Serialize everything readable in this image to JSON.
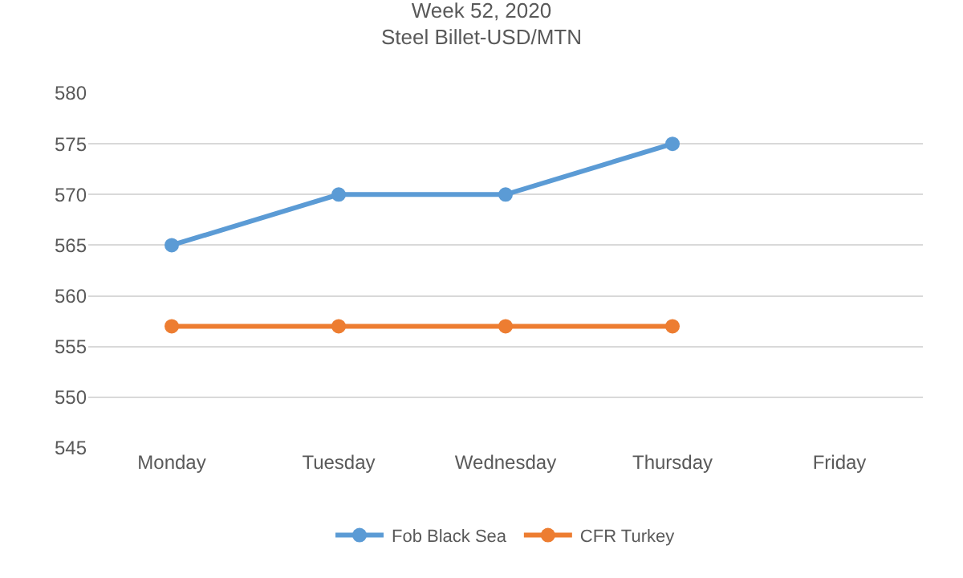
{
  "chart_data": {
    "type": "line",
    "title": "Week 52, 2020",
    "subtitle": "Steel Billet-USD/MTN",
    "categories": [
      "Monday",
      "Tuesday",
      "Wednesday",
      "Thursday",
      "Friday"
    ],
    "series": [
      {
        "name": "Fob Black Sea",
        "color": "#5b9bd5",
        "values": [
          565,
          570,
          570,
          575,
          null
        ]
      },
      {
        "name": "CFR Turkey",
        "color": "#ed7d31",
        "values": [
          557,
          557,
          557,
          557,
          null
        ]
      }
    ],
    "ylim": [
      545,
      580
    ],
    "yticks": [
      545,
      550,
      555,
      560,
      565,
      570,
      575,
      580
    ],
    "grid": "y",
    "legend": "bottom",
    "marker": "circle",
    "line_style": "solid"
  }
}
